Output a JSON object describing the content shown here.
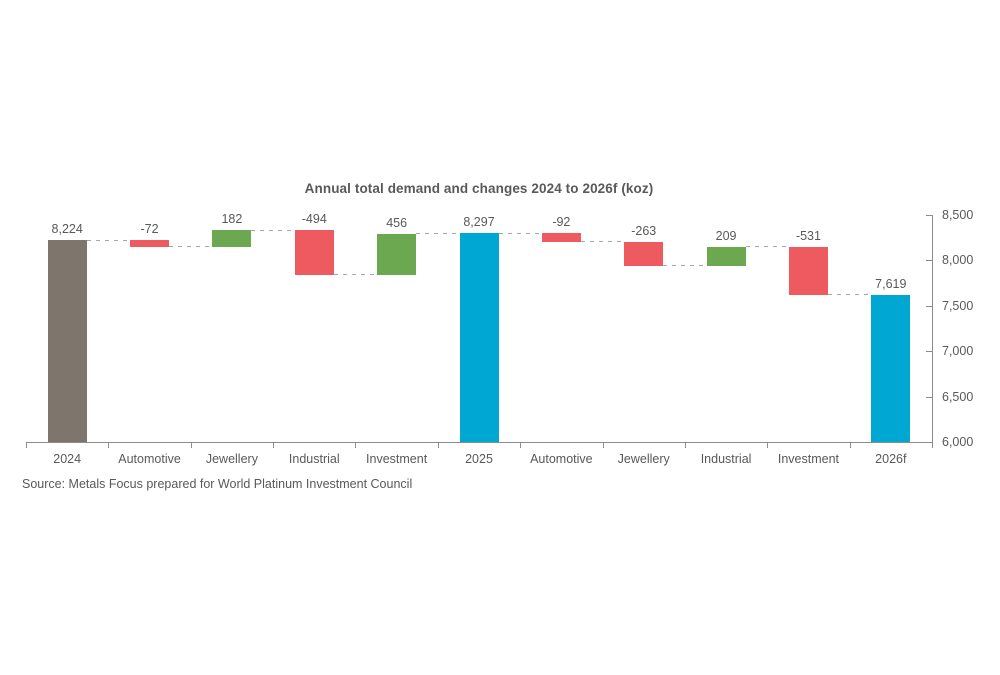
{
  "source_note": "Source: Metals Focus prepared for World Platinum Investment Council",
  "chart_data": {
    "type": "bar",
    "subtype": "waterfall",
    "title": "Annual total demand and changes 2024 to 2026f (koz)",
    "categories": [
      "2024",
      "Automotive",
      "Jewellery",
      "Industrial",
      "Investment",
      "2025",
      "Automotive",
      "Jewellery",
      "Industrial",
      "Investment",
      "2026f"
    ],
    "bars": [
      {
        "label": "2024",
        "value": 8224,
        "display": "8,224",
        "kind": "total",
        "color_key": "total_gray"
      },
      {
        "label": "Automotive",
        "value": -72,
        "display": "-72",
        "kind": "change",
        "color_key": "decrease"
      },
      {
        "label": "Jewellery",
        "value": 182,
        "display": "182",
        "kind": "change",
        "color_key": "increase"
      },
      {
        "label": "Industrial",
        "value": -494,
        "display": "-494",
        "kind": "change",
        "color_key": "decrease"
      },
      {
        "label": "Investment",
        "value": 456,
        "display": "456",
        "kind": "change",
        "color_key": "increase"
      },
      {
        "label": "2025",
        "value": 8297,
        "display": "8,297",
        "kind": "total",
        "color_key": "total_blue"
      },
      {
        "label": "Automotive",
        "value": -92,
        "display": "-92",
        "kind": "change",
        "color_key": "decrease"
      },
      {
        "label": "Jewellery",
        "value": -263,
        "display": "-263",
        "kind": "change",
        "color_key": "decrease"
      },
      {
        "label": "Industrial",
        "value": 209,
        "display": "209",
        "kind": "change",
        "color_key": "increase"
      },
      {
        "label": "Investment",
        "value": -531,
        "display": "-531",
        "kind": "change",
        "color_key": "decrease"
      },
      {
        "label": "2026f",
        "value": 7619,
        "display": "7,619",
        "kind": "total",
        "color_key": "total_blue"
      }
    ],
    "y_axis": {
      "side": "right",
      "min": 6000,
      "max": 8500,
      "step": 500,
      "ticks": [
        {
          "value": 8500,
          "label": "8,500"
        },
        {
          "value": 8000,
          "label": "8,000"
        },
        {
          "value": 7500,
          "label": "7,500"
        },
        {
          "value": 7000,
          "label": "7,000"
        },
        {
          "value": 6500,
          "label": "6,500"
        },
        {
          "value": 6000,
          "label": "6,000"
        }
      ]
    },
    "grid": "off",
    "legend": "none",
    "connectors": "dashed",
    "palette": {
      "total_gray": "#7E756D",
      "total_blue": "#00A7D3",
      "increase": "#6BA84F",
      "decrease": "#ED5A5F",
      "text": "#595959",
      "axis": "#8C8C8C",
      "connector": "#A6A6A6",
      "background": "#FFFFFF"
    }
  }
}
